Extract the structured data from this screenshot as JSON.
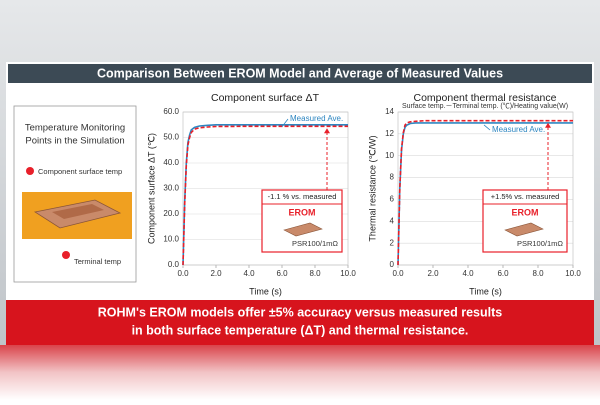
{
  "header": {
    "title": "Comparison Between EROM Model and Average of Measured Values"
  },
  "left_panel": {
    "title": [
      "Temperature Monitoring",
      "Points in the Simulation"
    ],
    "labels": [
      "Component surface temp",
      "Terminal temp"
    ]
  },
  "banner": {
    "lines": [
      "ROHM's EROM models offer ±5% accuracy versus measured results",
      "in both surface temperature (ΔT) and thermal resistance."
    ]
  },
  "chart_data": [
    {
      "type": "line",
      "title": "Component surface ΔT",
      "x_label": "Time (s)",
      "y_label": "Component surface ΔT (℃)",
      "xlim": [
        0,
        10
      ],
      "ylim": [
        0,
        60
      ],
      "xticks": [
        {
          "value": 0,
          "label": "0.0"
        },
        {
          "value": 2,
          "label": "2.0"
        },
        {
          "value": 4,
          "label": "4.0"
        },
        {
          "value": 6,
          "label": "6.0"
        },
        {
          "value": 8,
          "label": "8.0"
        },
        {
          "value": 10,
          "label": "10.0"
        }
      ],
      "yticks": [
        {
          "value": 0,
          "label": "0.0"
        },
        {
          "value": 10,
          "label": "10.0"
        },
        {
          "value": 20,
          "label": "20.0"
        },
        {
          "value": 30,
          "label": "30.0"
        },
        {
          "value": 40,
          "label": "40.0"
        },
        {
          "value": 50,
          "label": "50.0"
        },
        {
          "value": 60,
          "label": "60.0"
        }
      ],
      "grid": true,
      "x": [
        0,
        0.1,
        0.2,
        0.3,
        0.4,
        0.5,
        0.7,
        1.0,
        1.5,
        2,
        4,
        6,
        8,
        10
      ],
      "series": [
        {
          "name": "Measured Ave.",
          "color": "#2e86c1",
          "style": "solid",
          "values": [
            0,
            25,
            40,
            48,
            51,
            53,
            54,
            54.5,
            54.8,
            55,
            55,
            55,
            55,
            55
          ]
        },
        {
          "name": "EROM",
          "color": "#e8202a",
          "style": "dashed",
          "values": [
            0,
            24,
            39,
            47,
            50,
            52,
            53.3,
            53.8,
            54.1,
            54.3,
            54.4,
            54.4,
            54.4,
            54.4
          ]
        }
      ],
      "annotations": [
        "-1.1 % vs. measured",
        "PSR100/1mΩ"
      ]
    },
    {
      "type": "line",
      "title": "Component thermal resistance",
      "subtitle": "Surface temp.－Terminal temp. (℃)/Heating value(W)",
      "x_label": "Time (s)",
      "y_label": "Thermal resistance (℃/W)",
      "xlim": [
        0,
        10
      ],
      "ylim": [
        0,
        14
      ],
      "xticks": [
        {
          "value": 0,
          "label": "0.0"
        },
        {
          "value": 2,
          "label": "2.0"
        },
        {
          "value": 4,
          "label": "4.0"
        },
        {
          "value": 6,
          "label": "6.0"
        },
        {
          "value": 8,
          "label": "8.0"
        },
        {
          "value": 10,
          "label": "10.0"
        }
      ],
      "yticks": [
        0,
        2,
        4,
        6,
        8,
        10,
        12,
        14
      ],
      "grid": true,
      "x": [
        0,
        0.1,
        0.2,
        0.3,
        0.4,
        0.5,
        0.7,
        1.0,
        1.5,
        2,
        4,
        6,
        8,
        10
      ],
      "series": [
        {
          "name": "Measured Ave.",
          "color": "#2e86c1",
          "style": "solid",
          "values": [
            0,
            7,
            10.5,
            12,
            12.6,
            12.8,
            12.95,
            13,
            13,
            13,
            13,
            13,
            13,
            13
          ]
        },
        {
          "name": "EROM",
          "color": "#e8202a",
          "style": "dashed",
          "values": [
            0,
            7,
            10.6,
            12.1,
            12.8,
            13,
            13.1,
            13.15,
            13.2,
            13.2,
            13.2,
            13.2,
            13.2,
            13.2
          ]
        }
      ],
      "annotations": [
        "+1.5% vs. measured",
        "PSR100/1mΩ"
      ]
    }
  ]
}
